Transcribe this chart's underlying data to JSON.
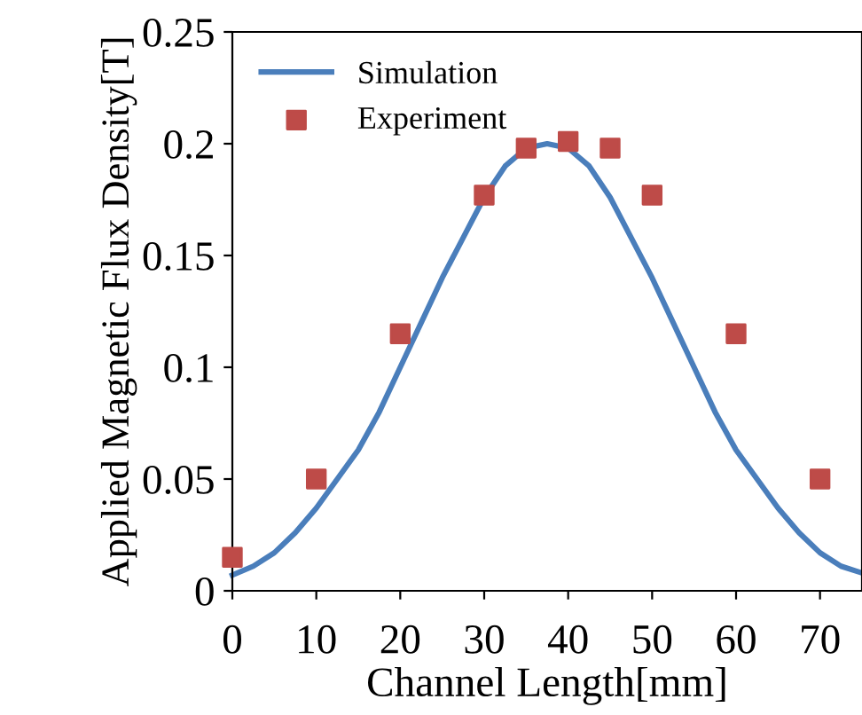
{
  "chart_data": {
    "type": "line",
    "xlabel": "Channel Length[mm]",
    "ylabel": "Applied Magnetic Flux Density[T]",
    "xlim": [
      0,
      75
    ],
    "ylim": [
      0,
      0.25
    ],
    "xticks": [
      0,
      10,
      20,
      30,
      40,
      50,
      60,
      70
    ],
    "yticks": [
      0,
      0.05,
      0.1,
      0.15,
      0.2,
      0.25
    ],
    "grid": false,
    "legend": "top left",
    "series": [
      {
        "name": "Simulation",
        "color": "#4a7ebb",
        "marker": "none",
        "line_style": "solid",
        "x": [
          0,
          2.5,
          5,
          7.5,
          10,
          12.5,
          15,
          17.5,
          20,
          22.5,
          25,
          27.5,
          30,
          32.5,
          35,
          37.5,
          40,
          42.5,
          45,
          47.5,
          50,
          52.5,
          55,
          57.5,
          60,
          62.5,
          65,
          67.5,
          70,
          72.5,
          75
        ],
        "values": [
          0.007,
          0.011,
          0.017,
          0.026,
          0.037,
          0.05,
          0.063,
          0.08,
          0.1,
          0.12,
          0.14,
          0.158,
          0.176,
          0.19,
          0.198,
          0.2,
          0.198,
          0.19,
          0.176,
          0.158,
          0.14,
          0.12,
          0.1,
          0.08,
          0.063,
          0.05,
          0.037,
          0.026,
          0.017,
          0.011,
          0.008
        ]
      },
      {
        "name": "Experiment",
        "type": "scatter",
        "color": "#be4b48",
        "marker": "square",
        "x": [
          0,
          10,
          20,
          30,
          35,
          40,
          45,
          50,
          60,
          70
        ],
        "values": [
          0.015,
          0.05,
          0.115,
          0.177,
          0.198,
          0.201,
          0.198,
          0.177,
          0.115,
          0.05
        ]
      }
    ]
  }
}
